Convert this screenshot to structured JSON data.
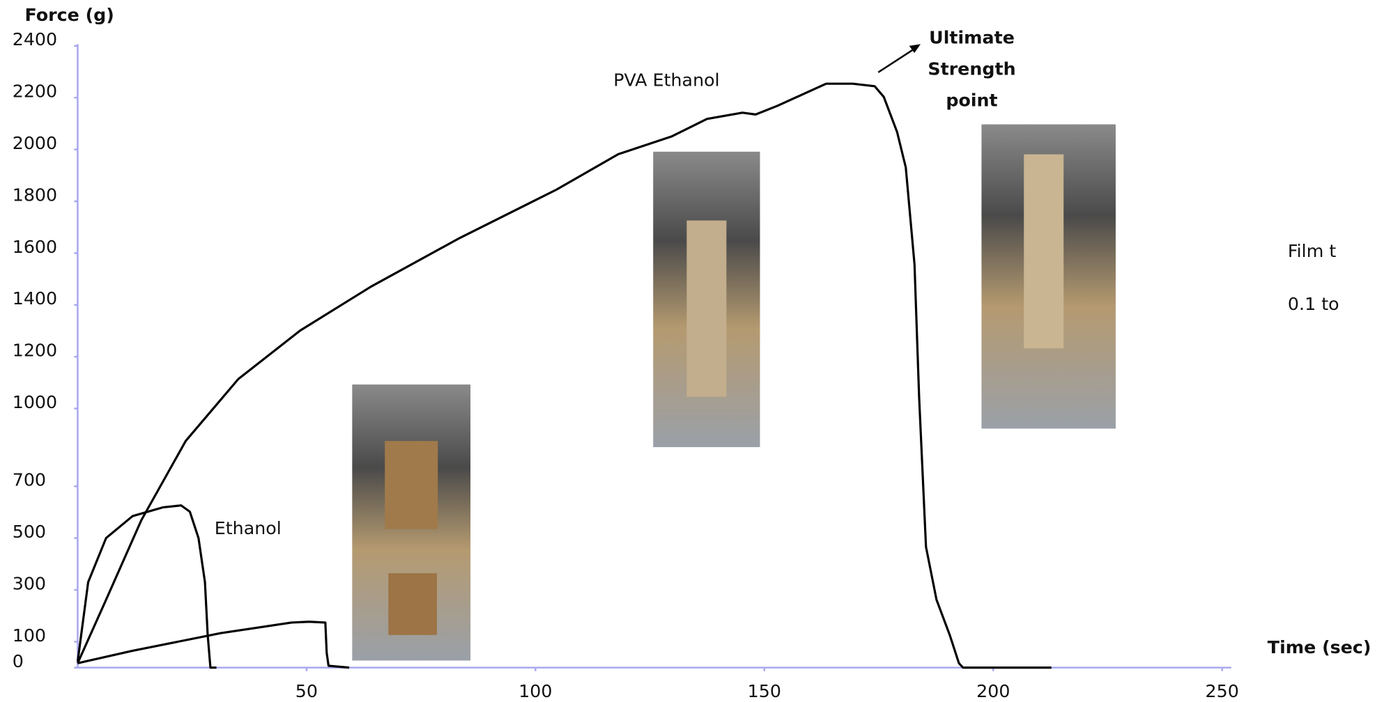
{
  "chart_data": {
    "type": "line",
    "title": "Force (g)",
    "x_label": "Time (sec)",
    "xlim": [
      0,
      252
    ],
    "xticks": [
      50,
      100,
      150,
      200,
      250
    ],
    "ylim": [
      0,
      2400
    ],
    "yticks": [
      0,
      100,
      300,
      500,
      700,
      1000,
      1200,
      1400,
      1600,
      1800,
      2000,
      2200,
      2400
    ],
    "grid": false,
    "series": [
      {
        "name": "PVA Ethanol",
        "color": "#000000",
        "x": [
          0,
          6.2,
          13.9,
          23.6,
          35.1,
          48.6,
          64.1,
          83.4,
          104.6,
          118.1,
          129.7,
          137.5,
          145.2,
          148.1,
          152.9,
          163.5,
          169.3,
          174.1,
          176.1,
          179,
          180.9,
          182.8,
          183.8,
          185.3,
          187.6,
          190.5,
          192.5,
          193.4,
          212.7
        ],
        "values": [
          17,
          262,
          569,
          875,
          1114,
          1301,
          1471,
          1658,
          1845,
          1982,
          2050,
          2118,
          2142,
          2135,
          2169,
          2254,
          2254,
          2244,
          2203,
          2067,
          1931,
          1556,
          1045,
          466,
          262,
          126,
          17,
          0,
          0
        ]
      },
      {
        "name": "Ethanol",
        "color": "#000000",
        "x": [
          0,
          2.3,
          6.2,
          12,
          18.7,
          22.6,
          24.5,
          26.4,
          27.8,
          28.4,
          29,
          30.3
        ],
        "values": [
          24,
          330,
          500,
          585,
          619,
          626,
          602,
          500,
          330,
          126,
          0,
          0
        ]
      },
      {
        "color": "#000000",
        "x": [
          0,
          12,
          31.3,
          46.7,
          50.6,
          54.1,
          54.4,
          54.8,
          59.3
        ],
        "values": [
          17,
          65,
          133,
          174,
          177,
          174,
          58,
          7,
          0
        ]
      }
    ],
    "annotations": {
      "ultimate": [
        "Ultimate",
        "Strength",
        "point"
      ],
      "film": [
        "Film t",
        "0.1 to"
      ]
    }
  }
}
